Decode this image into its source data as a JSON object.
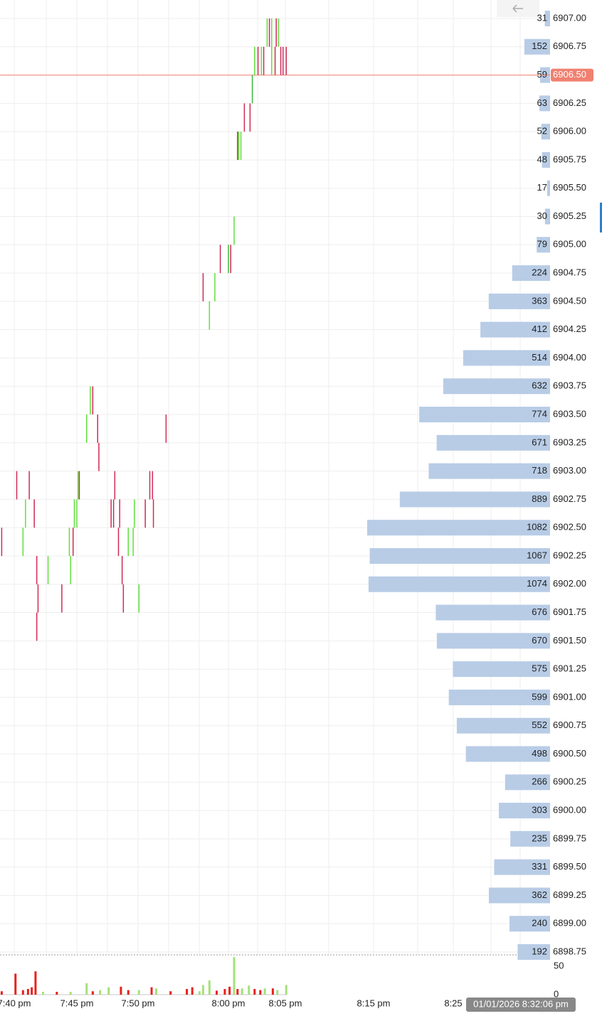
{
  "chart_data": {
    "type": "tick-profile",
    "ylim": [
      6898.75,
      6907.0
    ],
    "yticks": [
      {
        "value": 6907.0,
        "label": "6907.00"
      },
      {
        "value": 6906.75,
        "label": "6906.75"
      },
      {
        "value": 6906.5,
        "label": "6906.50"
      },
      {
        "value": 6906.25,
        "label": "6906.25"
      },
      {
        "value": 6906.0,
        "label": "6906.00"
      },
      {
        "value": 6905.75,
        "label": "6905.75"
      },
      {
        "value": 6905.5,
        "label": "6905.50"
      },
      {
        "value": 6905.25,
        "label": "6905.25"
      },
      {
        "value": 6905.0,
        "label": "6905.00"
      },
      {
        "value": 6904.75,
        "label": "6904.75"
      },
      {
        "value": 6904.5,
        "label": "6904.50"
      },
      {
        "value": 6904.25,
        "label": "6904.25"
      },
      {
        "value": 6904.0,
        "label": "6904.00"
      },
      {
        "value": 6903.75,
        "label": "6903.75"
      },
      {
        "value": 6903.5,
        "label": "6903.50"
      },
      {
        "value": 6903.25,
        "label": "6903.25"
      },
      {
        "value": 6903.0,
        "label": "6903.00"
      },
      {
        "value": 6902.75,
        "label": "6902.75"
      },
      {
        "value": 6902.5,
        "label": "6902.50"
      },
      {
        "value": 6902.25,
        "label": "6902.25"
      },
      {
        "value": 6902.0,
        "label": "6902.00"
      },
      {
        "value": 6901.75,
        "label": "6901.75"
      },
      {
        "value": 6901.5,
        "label": "6901.50"
      },
      {
        "value": 6901.25,
        "label": "6901.25"
      },
      {
        "value": 6901.0,
        "label": "6901.00"
      },
      {
        "value": 6900.75,
        "label": "6900.75"
      },
      {
        "value": 6900.5,
        "label": "6900.50"
      },
      {
        "value": 6900.25,
        "label": "6900.25"
      },
      {
        "value": 6900.0,
        "label": "6900.00"
      },
      {
        "value": 6899.75,
        "label": "6899.75"
      },
      {
        "value": 6899.5,
        "label": "6899.50"
      },
      {
        "value": 6899.25,
        "label": "6899.25"
      },
      {
        "value": 6899.0,
        "label": "6899.00"
      },
      {
        "value": 6898.75,
        "label": "6898.75"
      }
    ],
    "profile_volumes": [
      31,
      152,
      59,
      63,
      52,
      48,
      17,
      30,
      79,
      224,
      363,
      412,
      514,
      632,
      774,
      671,
      718,
      889,
      1082,
      1067,
      1074,
      676,
      670,
      575,
      599,
      552,
      498,
      266,
      303,
      235,
      331,
      362,
      240,
      192
    ],
    "profile_color": "#b8cce6",
    "last_price": {
      "value": 6906.5,
      "label": "6906.50"
    },
    "last_price_color": "#f08070",
    "xticks": [
      {
        "value": 0,
        "label": "7:40 pm"
      },
      {
        "value": 5,
        "label": "7:45 pm"
      },
      {
        "value": 10,
        "label": "7:50 pm"
      },
      {
        "value": 20,
        "label": "8:00 pm"
      },
      {
        "value": 25,
        "label": "8:05 pm"
      },
      {
        "value": 35,
        "label": "8:15 pm"
      },
      {
        "value": 45,
        "label": "8:25"
      }
    ],
    "crosshair_label": "01/01/2026 8:32:06 pm",
    "grid": true,
    "candles": [
      {
        "x": 23.4,
        "high": 6907.0,
        "low": 6906.75,
        "color": "#5fe03c"
      },
      {
        "x": 23.6,
        "high": 6907.0,
        "low": 6906.75,
        "color": "#d02a55"
      },
      {
        "x": 23.8,
        "high": 6907.0,
        "low": 6906.75,
        "color": "#5fe03c"
      },
      {
        "x": 24.2,
        "high": 6907.0,
        "low": 6906.75,
        "color": "#d02a55"
      },
      {
        "x": 24.4,
        "high": 6907.0,
        "low": 6906.75,
        "color": "#5fe03c"
      },
      {
        "x": 22.3,
        "high": 6906.75,
        "low": 6906.5,
        "color": "#5fe03c"
      },
      {
        "x": 22.6,
        "high": 6906.75,
        "low": 6906.5,
        "color": "#d02a55"
      },
      {
        "x": 22.9,
        "high": 6906.75,
        "low": 6906.5,
        "color": "#5fe03c"
      },
      {
        "x": 23.1,
        "high": 6906.75,
        "low": 6906.5,
        "color": "#d02a55"
      },
      {
        "x": 23.8,
        "high": 6906.75,
        "low": 6906.5,
        "color": "#5fe03c"
      },
      {
        "x": 24.1,
        "high": 6906.75,
        "low": 6906.5,
        "color": "#d02a55"
      },
      {
        "x": 24.6,
        "high": 6906.75,
        "low": 6906.5,
        "color": "#d02a55"
      },
      {
        "x": 24.8,
        "high": 6906.75,
        "low": 6906.5,
        "color": "#d02a55"
      },
      {
        "x": 25.1,
        "high": 6906.75,
        "low": 6906.5,
        "color": "#d02a55"
      },
      {
        "x": 22.1,
        "high": 6906.5,
        "low": 6906.25,
        "color": "#3cb83c"
      },
      {
        "x": 21.4,
        "high": 6906.25,
        "low": 6906.0,
        "color": "#d02a55"
      },
      {
        "x": 21.9,
        "high": 6906.25,
        "low": 6906.0,
        "color": "#d02a55"
      },
      {
        "x": 20.8,
        "high": 6906.0,
        "low": 6905.75,
        "color": "#d02a55"
      },
      {
        "x": 20.9,
        "high": 6906.0,
        "low": 6905.75,
        "color": "#5fe03c"
      },
      {
        "x": 21.1,
        "high": 6906.0,
        "low": 6905.75,
        "color": "#5fe03c"
      },
      {
        "x": 20.5,
        "high": 6905.25,
        "low": 6905.0,
        "color": "#5fe03c"
      },
      {
        "x": 19.1,
        "high": 6905.0,
        "low": 6904.75,
        "color": "#d02a55"
      },
      {
        "x": 20.0,
        "high": 6905.0,
        "low": 6904.75,
        "color": "#3cb83c"
      },
      {
        "x": 20.2,
        "high": 6905.0,
        "low": 6904.75,
        "color": "#d02a55"
      },
      {
        "x": 17.2,
        "high": 6904.75,
        "low": 6904.5,
        "color": "#d02a55"
      },
      {
        "x": 18.5,
        "high": 6904.75,
        "low": 6904.5,
        "color": "#5fe03c"
      },
      {
        "x": 17.9,
        "high": 6904.5,
        "low": 6904.25,
        "color": "#5fe03c"
      },
      {
        "x": 6.1,
        "high": 6903.75,
        "low": 6903.5,
        "color": "#5fe03c"
      },
      {
        "x": 6.3,
        "high": 6903.75,
        "low": 6903.5,
        "color": "#d02a55"
      },
      {
        "x": 5.8,
        "high": 6903.5,
        "low": 6903.25,
        "color": "#5fe03c"
      },
      {
        "x": 6.7,
        "high": 6903.5,
        "low": 6903.25,
        "color": "#d02a55"
      },
      {
        "x": 13.1,
        "high": 6903.5,
        "low": 6903.25,
        "color": "#d02a55"
      },
      {
        "x": 6.8,
        "high": 6903.25,
        "low": 6903.0,
        "color": "#d02a55"
      },
      {
        "x": 0.2,
        "high": 6903.0,
        "low": 6902.75,
        "color": "#d02a55"
      },
      {
        "x": 1.2,
        "high": 6903.0,
        "low": 6902.75,
        "color": "#d02a55"
      },
      {
        "x": 5.1,
        "high": 6903.0,
        "low": 6902.75,
        "color": "#5fe03c"
      },
      {
        "x": 5.2,
        "high": 6903.0,
        "low": 6902.75,
        "color": "#d02a55"
      },
      {
        "x": 8.1,
        "high": 6903.0,
        "low": 6902.75,
        "color": "#d02a55"
      },
      {
        "x": 11.3,
        "high": 6903.0,
        "low": 6902.75,
        "color": "#d02a55"
      },
      {
        "x": 11.6,
        "high": 6903.0,
        "low": 6902.75,
        "color": "#d02a55"
      },
      {
        "x": 0.9,
        "high": 6902.75,
        "low": 6902.5,
        "color": "#5fe03c"
      },
      {
        "x": 1.6,
        "high": 6902.75,
        "low": 6902.5,
        "color": "#d02a55"
      },
      {
        "x": 4.8,
        "high": 6902.75,
        "low": 6902.5,
        "color": "#5fe03c"
      },
      {
        "x": 5.0,
        "high": 6902.75,
        "low": 6902.5,
        "color": "#5fe03c"
      },
      {
        "x": 7.8,
        "high": 6902.75,
        "low": 6902.5,
        "color": "#d02a55"
      },
      {
        "x": 8.0,
        "high": 6902.75,
        "low": 6902.5,
        "color": "#d02a55"
      },
      {
        "x": 8.5,
        "high": 6902.75,
        "low": 6902.5,
        "color": "#d02a55"
      },
      {
        "x": 9.7,
        "high": 6902.75,
        "low": 6902.5,
        "color": "#5fe03c"
      },
      {
        "x": 10.8,
        "high": 6902.75,
        "low": 6902.5,
        "color": "#d02a55"
      },
      {
        "x": 11.7,
        "high": 6902.75,
        "low": 6902.5,
        "color": "#d02a55"
      },
      {
        "x": -1.0,
        "high": 6902.5,
        "low": 6902.25,
        "color": "#d02a55"
      },
      {
        "x": 0.7,
        "high": 6902.5,
        "low": 6902.25,
        "color": "#5fe03c"
      },
      {
        "x": 4.4,
        "high": 6902.5,
        "low": 6902.25,
        "color": "#5fe03c"
      },
      {
        "x": 4.7,
        "high": 6902.5,
        "low": 6902.25,
        "color": "#d02a55"
      },
      {
        "x": 8.4,
        "high": 6902.5,
        "low": 6902.25,
        "color": "#d02a55"
      },
      {
        "x": 9.2,
        "high": 6902.5,
        "low": 6902.25,
        "color": "#5fe03c"
      },
      {
        "x": 9.6,
        "high": 6902.5,
        "low": 6902.25,
        "color": "#5fe03c"
      },
      {
        "x": 1.8,
        "high": 6902.25,
        "low": 6902.0,
        "color": "#d02a55"
      },
      {
        "x": 2.7,
        "high": 6902.25,
        "low": 6902.0,
        "color": "#5fe03c"
      },
      {
        "x": 4.5,
        "high": 6902.25,
        "low": 6902.0,
        "color": "#5fe03c"
      },
      {
        "x": 8.7,
        "high": 6902.25,
        "low": 6902.0,
        "color": "#d02a55"
      },
      {
        "x": 1.9,
        "high": 6902.0,
        "low": 6901.75,
        "color": "#d02a55"
      },
      {
        "x": 3.8,
        "high": 6902.0,
        "low": 6901.75,
        "color": "#d02a55"
      },
      {
        "x": 8.8,
        "high": 6902.0,
        "low": 6901.75,
        "color": "#d02a55"
      },
      {
        "x": 10.1,
        "high": 6902.0,
        "low": 6901.75,
        "color": "#5fe03c"
      },
      {
        "x": 1.8,
        "high": 6901.75,
        "low": 6901.5,
        "color": "#d02a55"
      }
    ],
    "volume_ylim": [
      0,
      70
    ],
    "volume_yticks": [
      0,
      50
    ],
    "volumes": [
      {
        "x": -1.0,
        "value": 6,
        "color": "#e8201c"
      },
      {
        "x": 0.1,
        "value": 37,
        "color": "#e8201c"
      },
      {
        "x": 0.7,
        "value": 8,
        "color": "#e8201c"
      },
      {
        "x": 1.1,
        "value": 10,
        "color": "#e8201c"
      },
      {
        "x": 1.4,
        "value": 13,
        "color": "#e8201c"
      },
      {
        "x": 1.7,
        "value": 41,
        "color": "#e8201c"
      },
      {
        "x": 2.3,
        "value": 5,
        "color": "#a6e07a"
      },
      {
        "x": 3.4,
        "value": 5,
        "color": "#e8201c"
      },
      {
        "x": 4.5,
        "value": 5,
        "color": "#a6e07a"
      },
      {
        "x": 5.8,
        "value": 20,
        "color": "#a6e07a"
      },
      {
        "x": 6.3,
        "value": 6,
        "color": "#e8201c"
      },
      {
        "x": 6.9,
        "value": 8,
        "color": "#a6e07a"
      },
      {
        "x": 7.6,
        "value": 13,
        "color": "#a6e07a"
      },
      {
        "x": 8.6,
        "value": 14,
        "color": "#e8201c"
      },
      {
        "x": 9.2,
        "value": 8,
        "color": "#e8201c"
      },
      {
        "x": 10.1,
        "value": 8,
        "color": "#a6e07a"
      },
      {
        "x": 11.5,
        "value": 13,
        "color": "#e8201c"
      },
      {
        "x": 12.0,
        "value": 11,
        "color": "#a6e07a"
      },
      {
        "x": 13.6,
        "value": 6,
        "color": "#e8201c"
      },
      {
        "x": 15.4,
        "value": 10,
        "color": "#e8201c"
      },
      {
        "x": 16.0,
        "value": 13,
        "color": "#e8201c"
      },
      {
        "x": 16.8,
        "value": 6,
        "color": "#a6e07a"
      },
      {
        "x": 17.2,
        "value": 17,
        "color": "#a6e07a"
      },
      {
        "x": 17.9,
        "value": 25,
        "color": "#a6e07a"
      },
      {
        "x": 18.7,
        "value": 7,
        "color": "#e8201c"
      },
      {
        "x": 19.6,
        "value": 10,
        "color": "#e8201c"
      },
      {
        "x": 20.1,
        "value": 14,
        "color": "#e8201c"
      },
      {
        "x": 20.5,
        "value": 66,
        "color": "#a6e07a"
      },
      {
        "x": 20.8,
        "value": 10,
        "color": "#e8201c"
      },
      {
        "x": 21.2,
        "value": 11,
        "color": "#a6e07a"
      },
      {
        "x": 21.8,
        "value": 16,
        "color": "#a6e07a"
      },
      {
        "x": 22.3,
        "value": 10,
        "color": "#e8201c"
      },
      {
        "x": 22.8,
        "value": 8,
        "color": "#e8201c"
      },
      {
        "x": 23.2,
        "value": 11,
        "color": "#a6e07a"
      },
      {
        "x": 23.9,
        "value": 11,
        "color": "#e8201c"
      },
      {
        "x": 24.3,
        "value": 8,
        "color": "#a6e07a"
      },
      {
        "x": 25.1,
        "value": 17,
        "color": "#a6e07a"
      }
    ]
  }
}
